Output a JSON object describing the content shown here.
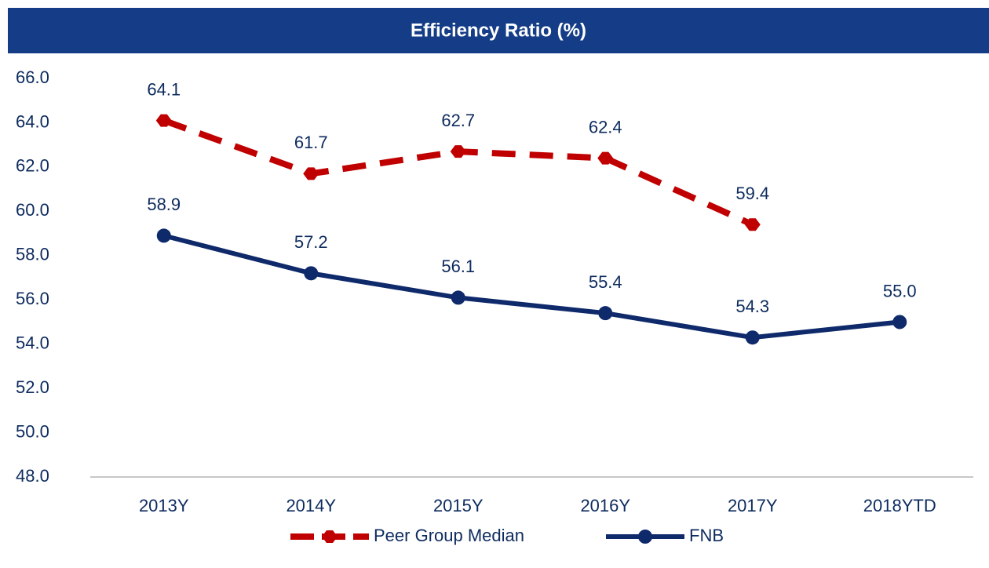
{
  "chart_data": {
    "type": "line",
    "title": "Efficiency Ratio (%)",
    "categories": [
      "2013Y",
      "2014Y",
      "2015Y",
      "2016Y",
      "2017Y",
      "2018YTD"
    ],
    "series": [
      {
        "name": "Peer Group Median",
        "color": "#c00000",
        "dashed": true,
        "values": [
          64.1,
          61.7,
          62.7,
          62.4,
          59.4,
          null
        ],
        "value_labels": [
          "64.1",
          "61.7",
          "62.7",
          "62.4",
          "59.4",
          null
        ]
      },
      {
        "name": "FNB",
        "color": "#0f2a6b",
        "dashed": false,
        "values": [
          58.9,
          57.2,
          56.1,
          55.4,
          54.3,
          55.0
        ],
        "value_labels": [
          "58.9",
          "57.2",
          "56.1",
          "55.4",
          "54.3",
          "55.0"
        ]
      }
    ],
    "ylim": [
      48,
      66
    ],
    "yticks": [
      {
        "value": 48,
        "label": "48.0"
      },
      {
        "value": 50,
        "label": "50.0"
      },
      {
        "value": 52,
        "label": "52.0"
      },
      {
        "value": 54,
        "label": "54.0"
      },
      {
        "value": 56,
        "label": "56.0"
      },
      {
        "value": 58,
        "label": "58.0"
      },
      {
        "value": 60,
        "label": "60.0"
      },
      {
        "value": 62,
        "label": "62.0"
      },
      {
        "value": 64,
        "label": "64.0"
      },
      {
        "value": 66,
        "label": "66.0"
      }
    ],
    "grid": false,
    "legend": "bottom"
  }
}
